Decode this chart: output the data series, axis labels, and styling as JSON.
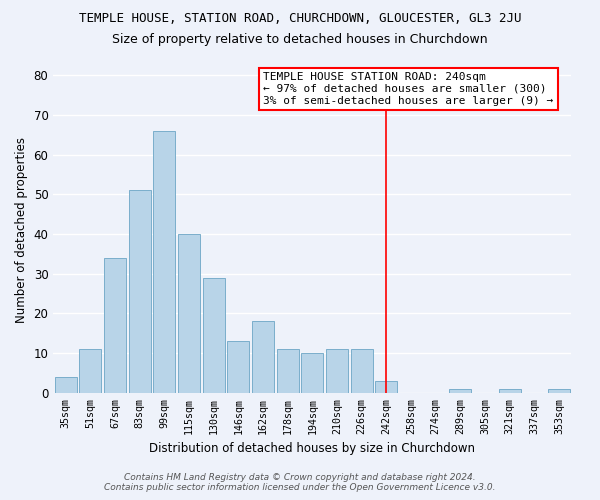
{
  "title": "TEMPLE HOUSE, STATION ROAD, CHURCHDOWN, GLOUCESTER, GL3 2JU",
  "subtitle": "Size of property relative to detached houses in Churchdown",
  "xlabel": "Distribution of detached houses by size in Churchdown",
  "ylabel": "Number of detached properties",
  "bar_labels": [
    "35sqm",
    "51sqm",
    "67sqm",
    "83sqm",
    "99sqm",
    "115sqm",
    "130sqm",
    "146sqm",
    "162sqm",
    "178sqm",
    "194sqm",
    "210sqm",
    "226sqm",
    "242sqm",
    "258sqm",
    "274sqm",
    "289sqm",
    "305sqm",
    "321sqm",
    "337sqm",
    "353sqm"
  ],
  "bar_values": [
    4,
    11,
    34,
    51,
    66,
    40,
    29,
    13,
    18,
    11,
    10,
    11,
    11,
    3,
    0,
    0,
    1,
    0,
    1,
    0,
    1
  ],
  "bar_color": "#b8d4e8",
  "bar_edge_color": "#7aaecb",
  "background_color": "#eef2fa",
  "grid_color": "#ffffff",
  "vline_x_index": 13,
  "annotation_title": "TEMPLE HOUSE STATION ROAD: 240sqm",
  "annotation_line1": "← 97% of detached houses are smaller (300)",
  "annotation_line2": "3% of semi-detached houses are larger (9) →",
  "footer_line1": "Contains HM Land Registry data © Crown copyright and database right 2024.",
  "footer_line2": "Contains public sector information licensed under the Open Government Licence v3.0.",
  "ylim": [
    0,
    82
  ],
  "yticks": [
    0,
    10,
    20,
    30,
    40,
    50,
    60,
    70,
    80
  ]
}
